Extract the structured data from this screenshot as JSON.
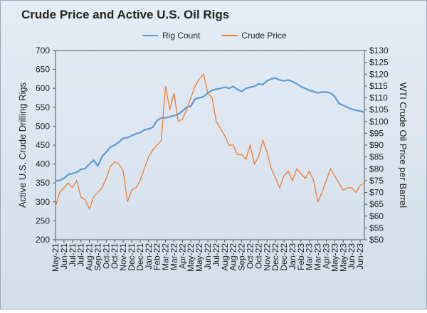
{
  "chart_data": {
    "type": "line",
    "title": "Crude Price and Active U.S. Oil Rigs",
    "y_label": "Active U.S. Crude Drilling Rigs",
    "y2_label": "WTI Crude Oil Price per Barrel",
    "legend": "top",
    "grid": false,
    "categories": [
      "May-21",
      null,
      "Jun-21",
      null,
      "Jul-21",
      null,
      "Jul-21",
      null,
      "Aug-21",
      null,
      "Sep-21",
      null,
      "Oct-21",
      null,
      "Oct-21",
      null,
      "Nov-21",
      null,
      "Dec-21",
      null,
      "Dec-21",
      null,
      "Jan-22",
      null,
      "Feb-22",
      null,
      "Mar-22",
      null,
      "Mar-22",
      null,
      "Apr-22",
      null,
      "May-22",
      null,
      "May-22",
      null,
      "Jun-22",
      null,
      "Jul-22",
      null,
      "Aug-22",
      null,
      "Aug-22",
      null,
      "Sep-22",
      null,
      "Oct-22",
      null,
      "Oct-22",
      null,
      "Nov-22",
      null,
      "Dec-22",
      null,
      "Dec-22",
      null,
      "Jan-23",
      null,
      "Feb-23",
      null,
      "Mar-23",
      null,
      "Mar-23",
      null,
      "Apr-23",
      null,
      "May-23",
      null,
      "May-23",
      null,
      "Jun-23",
      null,
      "Jun-23",
      null
    ],
    "ylim": [
      200,
      700
    ],
    "yticks": [
      200,
      250,
      300,
      350,
      400,
      450,
      500,
      550,
      600,
      650,
      700
    ],
    "y2lim": [
      50,
      130
    ],
    "y2ticks": [
      {
        "value": 50,
        "label": "$50"
      },
      {
        "value": 55,
        "label": "$55"
      },
      {
        "value": 60,
        "label": "$60"
      },
      {
        "value": 65,
        "label": "$65"
      },
      {
        "value": 70,
        "label": "$70"
      },
      {
        "value": 75,
        "label": "$75"
      },
      {
        "value": 80,
        "label": "$80"
      },
      {
        "value": 85,
        "label": "$85"
      },
      {
        "value": 90,
        "label": "$90"
      },
      {
        "value": 95,
        "label": "$95"
      },
      {
        "value": 100,
        "label": "$100"
      },
      {
        "value": 105,
        "label": "$105"
      },
      {
        "value": 110,
        "label": "$110"
      },
      {
        "value": 115,
        "label": "$115"
      },
      {
        "value": 120,
        "label": "$120"
      },
      {
        "value": 125,
        "label": "$125"
      },
      {
        "value": 130,
        "label": "$130"
      }
    ],
    "series": [
      {
        "name": "Rig Count",
        "color": "#5b9bd5",
        "values": [
          355,
          357,
          362,
          372,
          375,
          378,
          386,
          388,
          400,
          410,
          395,
          420,
          432,
          445,
          450,
          458,
          468,
          470,
          475,
          480,
          483,
          490,
          493,
          497,
          515,
          522,
          522,
          525,
          528,
          532,
          540,
          550,
          553,
          572,
          575,
          578,
          588,
          595,
          598,
          600,
          603,
          600,
          605,
          597,
          592,
          600,
          603,
          605,
          612,
          610,
          620,
          625,
          627,
          622,
          620,
          622,
          618,
          612,
          605,
          600,
          595,
          592,
          588,
          590,
          590,
          588,
          578,
          560,
          555,
          550,
          545,
          542,
          540,
          537
        ]
      },
      {
        "name": "Crude Price",
        "color": "#ed7d31",
        "axis": "y2",
        "values": [
          64,
          70,
          72,
          74,
          72,
          75,
          68,
          67,
          63,
          68,
          70,
          72,
          76,
          81,
          83,
          82,
          79,
          66,
          71,
          72,
          75,
          80,
          85,
          88,
          90,
          92,
          115,
          105,
          112,
          100,
          101,
          105,
          110,
          115,
          118,
          120,
          112,
          110,
          100,
          97,
          94,
          90,
          90,
          86,
          86,
          84,
          90,
          82,
          85,
          92,
          87,
          80,
          76,
          72,
          77,
          79,
          75,
          80,
          78,
          76,
          79,
          75,
          66,
          70,
          75,
          80,
          77,
          74,
          71,
          72,
          72,
          70,
          73,
          74
        ]
      }
    ]
  }
}
